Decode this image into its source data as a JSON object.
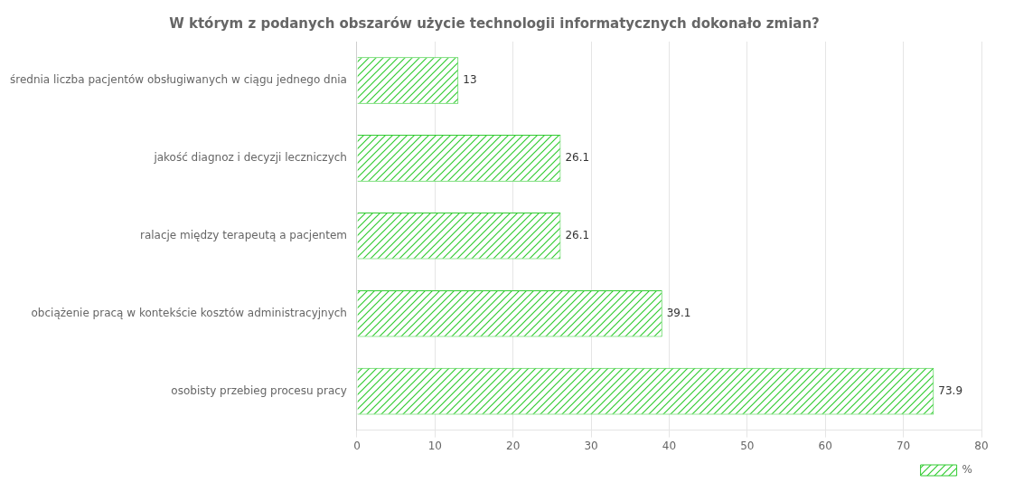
{
  "chart_data": {
    "type": "bar",
    "orientation": "horizontal",
    "title": "W którym z podanych obszarów użycie technologii informatycznych dokonało zmian?",
    "categories": [
      "średnia liczba pacjentów obsługiwanych w ciągu jednego dnia",
      "jakość diagnoz i decyzji leczniczych",
      "ralacje między terapeutą a pacjentem",
      "obciążenie pracą w kontekście kosztów administracyjnych",
      "osobisty przebieg procesu pracy"
    ],
    "series": [
      {
        "name": "%",
        "color": "#33cc33",
        "values": [
          13,
          26.1,
          26.1,
          39.1,
          73.9
        ]
      }
    ],
    "xlim": [
      0,
      80
    ],
    "xticks": [
      0,
      10,
      20,
      30,
      40,
      50,
      60,
      70,
      80
    ],
    "grid": true,
    "data_labels": true,
    "legend": "bottom right"
  }
}
